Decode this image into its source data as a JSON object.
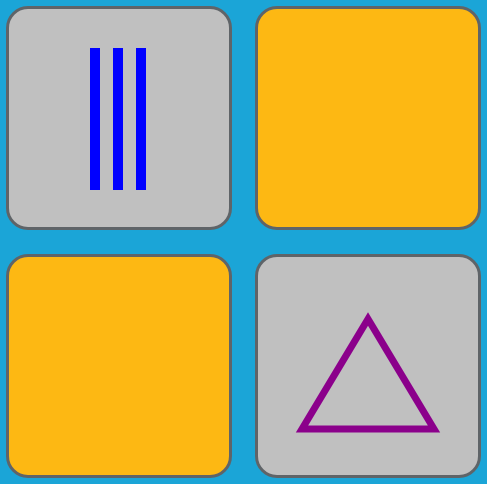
{
  "game": {
    "cards": [
      {
        "state": "revealed",
        "symbol": "three-vertical-lines",
        "symbol_color": "#0000ff"
      },
      {
        "state": "hidden"
      },
      {
        "state": "hidden"
      },
      {
        "state": "revealed",
        "symbol": "triangle-outline",
        "symbol_color": "#8b008b"
      }
    ]
  },
  "colors": {
    "background": "#1ba5d7",
    "card_face": "#c0c0c0",
    "card_back": "#fdb813",
    "card_border": "#5f6468"
  }
}
